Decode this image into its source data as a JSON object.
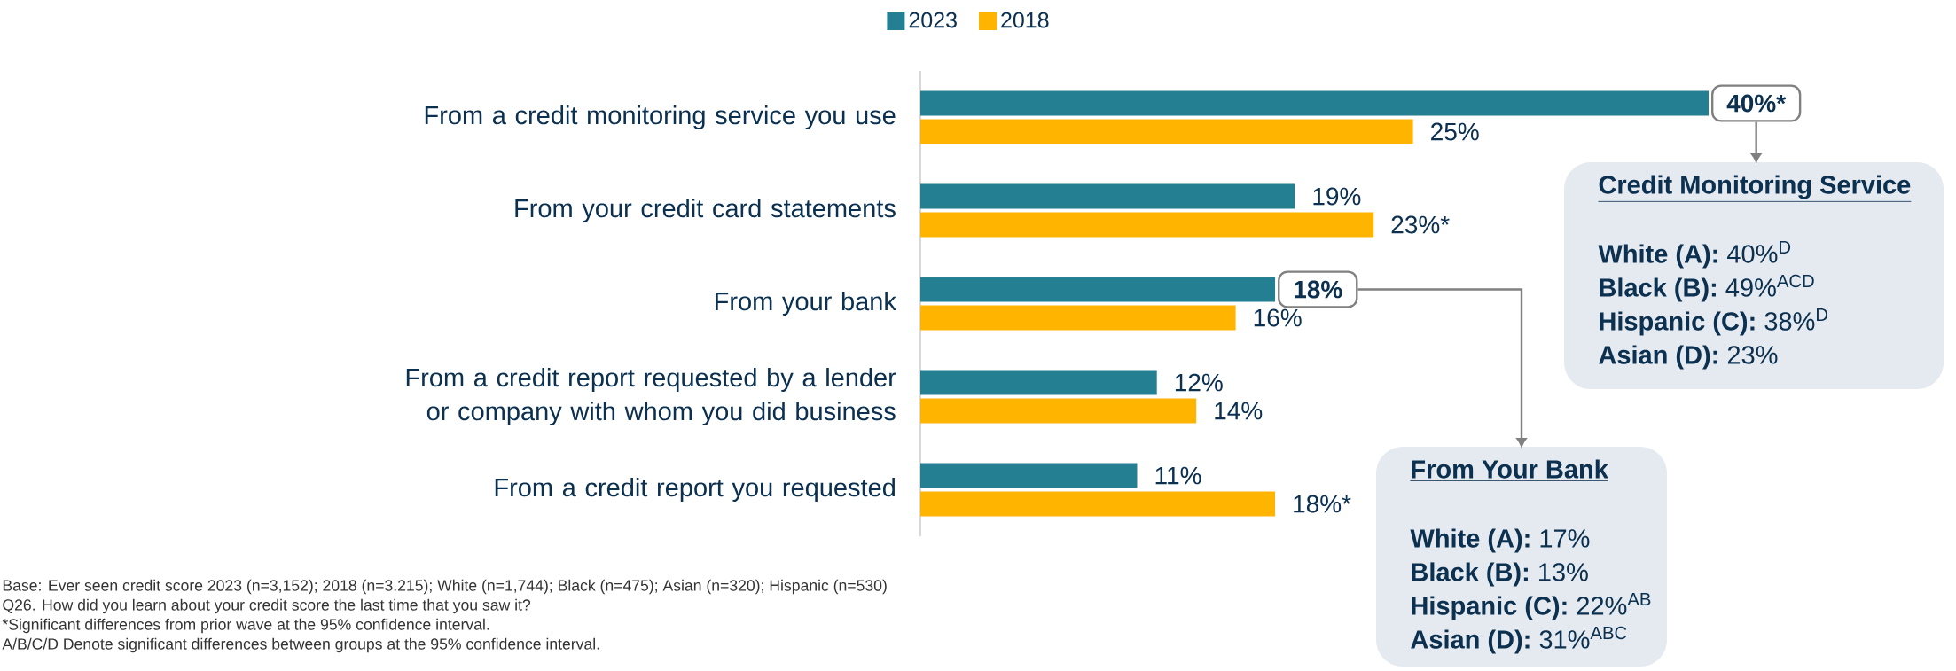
{
  "chart_data": {
    "type": "bar",
    "orientation": "horizontal",
    "categories": [
      "From a credit monitoring service you use",
      "From your credit card statements",
      "From your bank",
      "From a credit report requested by a lender or company with whom you did business",
      "From a credit report you requested"
    ],
    "series": [
      {
        "name": "2023",
        "color": "#237f91",
        "values": [
          40,
          19,
          18,
          12,
          11
        ],
        "value_labels": [
          "40%*",
          "19%",
          "18%",
          "12%",
          "11%"
        ]
      },
      {
        "name": "2018",
        "color": "#ffb400",
        "values": [
          25,
          23,
          16,
          14,
          18
        ],
        "value_labels": [
          "25%",
          "23%*",
          "16%",
          "14%",
          "18%*"
        ]
      }
    ],
    "legend": "top",
    "annotations": [
      "Credit Monitoring Service",
      "**White (A):** 40%$^{D}$",
      "**Black (B):** 49%$^{ACD}$",
      "**Hispanic (C):** 38%$^{D}$",
      "**Asian (D):** 23%",
      "From Your Bank",
      "**White (A):** 17%",
      "**Black (B):** 13%",
      "**Hispanic (C):** 22%$^{AB}$",
      "**Asian (D):** 31%$^{ABC}$",
      "Base:  Ever seen credit score 2023 (n=3,152); 2018 (n=3.215); White (n=1,744); Black (n=475); Asian (n=320); Hispanic (n=530)",
      "Q26. How did you learn about your credit score the last time that you saw it?",
      "*Significant differences from prior wave at the 95% confidence interval.",
      "A/B/C/D Denote significant differences between groups at  the 95% confidence interval."
    ]
  }
}
